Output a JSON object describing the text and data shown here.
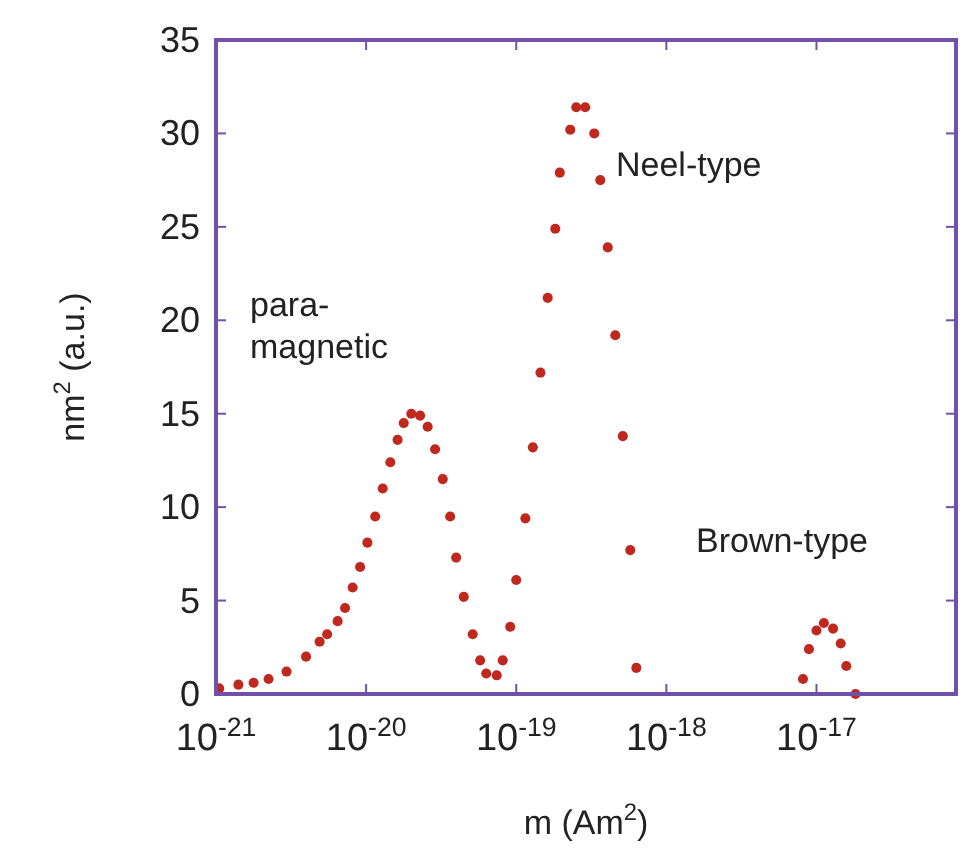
{
  "chart_data": {
    "type": "scatter",
    "xlabel": "m (Am$^{2}$)",
    "ylabel": "nm$^{2}$ (a.u.)",
    "log": "x",
    "marker": "circle",
    "grid": false,
    "xlim": [
      1e-21,
      8.5e-17
    ],
    "ylim": [
      0,
      35
    ],
    "xticks": [
      {
        "value": 1e-21,
        "label": "10$^{-21}$"
      },
      {
        "value": 1e-20,
        "label": "10$^{-20}$"
      },
      {
        "value": 1e-19,
        "label": "10$^{-19}$"
      },
      {
        "value": 1e-18,
        "label": "10$^{-18}$"
      },
      {
        "value": 1e-17,
        "label": "10$^{-17}$"
      }
    ],
    "yticks": [
      0,
      5,
      10,
      15,
      20,
      25,
      30,
      35
    ],
    "series": [
      {
        "color": "#c0281e",
        "x": [
          1.05e-21,
          1.41e-21,
          1.78e-21,
          2.24e-21,
          2.95e-21,
          3.98e-21,
          4.9e-21,
          5.5e-21,
          6.46e-21,
          7.24e-21,
          8.13e-21,
          9.12e-21,
          1.02e-20,
          1.15e-20,
          1.29e-20,
          1.45e-20,
          1.62e-20,
          1.78e-20,
          2e-20,
          2.29e-20,
          2.57e-20,
          2.88e-20,
          3.24e-20,
          3.63e-20,
          3.98e-20,
          4.47e-20,
          5.13e-20,
          5.75e-20,
          6.31e-20,
          7.41e-20,
          8.13e-20,
          9.12e-20,
          1e-19,
          1.15e-19,
          1.29e-19,
          1.45e-19,
          1.62e-19,
          1.82e-19,
          1.95e-19,
          2.29e-19,
          2.51e-19,
          2.88e-19,
          3.31e-19,
          3.63e-19,
          4.07e-19,
          4.57e-19,
          5.13e-19,
          5.75e-19,
          6.31e-19,
          8.13e-18,
          8.91e-18,
          1e-17,
          1.12e-17,
          1.29e-17,
          1.45e-17,
          1.58e-17,
          1.82e-17
        ],
        "values": [
          0.3,
          0.5,
          0.6,
          0.8,
          1.2,
          2.0,
          2.8,
          3.2,
          3.9,
          4.6,
          5.7,
          6.8,
          8.1,
          9.5,
          11.0,
          12.4,
          13.6,
          14.5,
          15.0,
          14.9,
          14.3,
          13.1,
          11.5,
          9.5,
          7.3,
          5.2,
          3.2,
          1.8,
          1.1,
          1.0,
          1.8,
          3.6,
          6.1,
          9.4,
          13.2,
          17.2,
          21.2,
          24.9,
          27.9,
          30.2,
          31.4,
          31.4,
          30.0,
          27.5,
          23.9,
          19.2,
          13.8,
          7.7,
          1.4,
          0.8,
          2.4,
          3.4,
          3.8,
          3.5,
          2.7,
          1.5,
          0
        ]
      }
    ],
    "annotations": [
      "para-\nmagnetic",
      "Neel-type",
      "Brown-type"
    ]
  }
}
